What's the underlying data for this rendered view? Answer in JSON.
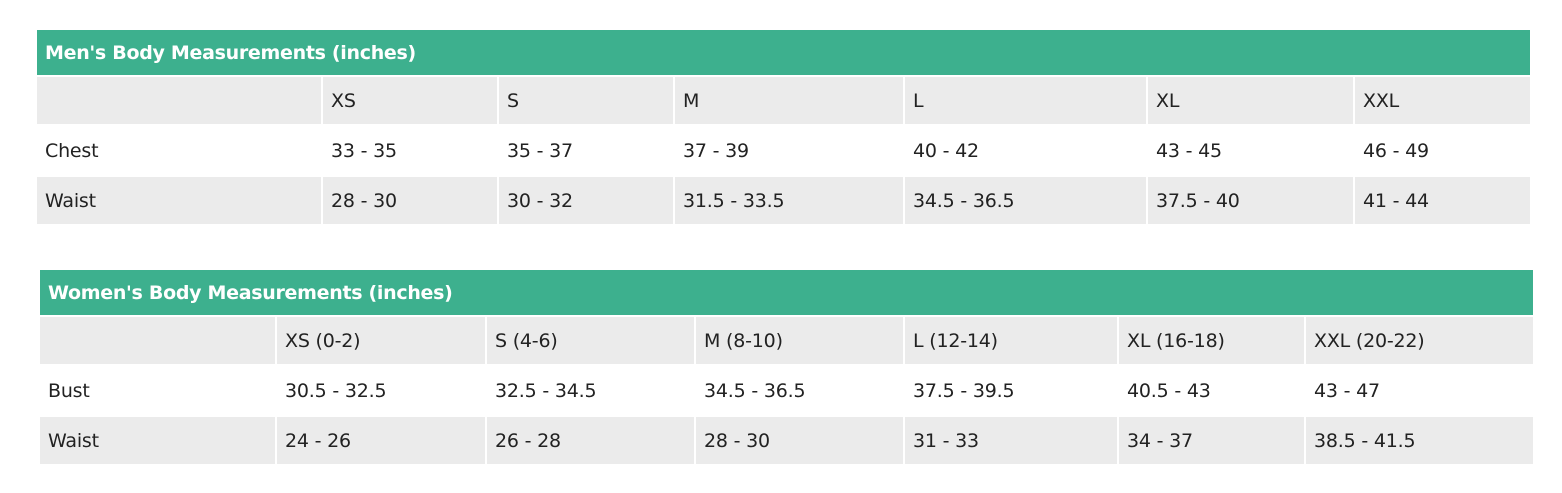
{
  "tables": [
    {
      "title": "Men's Body Measurements (inches)",
      "header": [
        "XS",
        "S",
        "M",
        "L",
        "XL",
        "XXL"
      ],
      "rows": [
        {
          "label": "Chest",
          "cells": [
            "33 - 35",
            "35 - 37",
            "37 - 39",
            "40 - 42",
            "43 - 45",
            "46 - 49"
          ]
        },
        {
          "label": "Waist",
          "cells": [
            "28 - 30",
            "30 - 32",
            "31.5 - 33.5",
            "34.5 - 36.5",
            "37.5 - 40",
            "41 - 44"
          ]
        }
      ]
    },
    {
      "title": "Women's Body Measurements (inches)",
      "header": [
        "XS (0-2)",
        "S (4-6)",
        "M (8-10)",
        "L (12-14)",
        "XL (16-18)",
        "XXL (20-22)"
      ],
      "rows": [
        {
          "label": "Bust",
          "cells": [
            "30.5 - 32.5",
            "32.5 - 34.5",
            "34.5 - 36.5",
            "37.5 - 39.5",
            "40.5 - 43",
            "43 - 47"
          ]
        },
        {
          "label": "Waist",
          "cells": [
            "24 - 26",
            "26 - 28",
            "28 - 30",
            "31 - 33",
            "34 - 37",
            "38.5 - 41.5"
          ]
        }
      ]
    }
  ]
}
